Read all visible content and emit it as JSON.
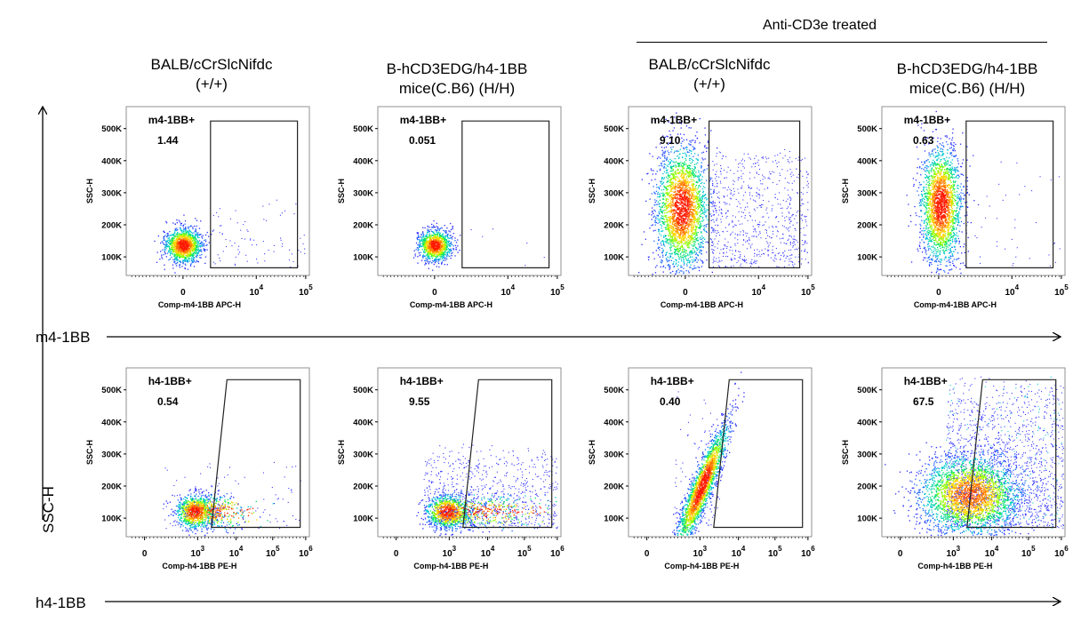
{
  "treatment_label": "Anti-CD3e treated",
  "columns": [
    {
      "title_line1": "BALB/cCrSlcNifdc",
      "title_line2": "(+/+)"
    },
    {
      "title_line1": "B-hCD3EDG/h4-1BB",
      "title_line2": "mice(C.B6) (H/H)"
    },
    {
      "title_line1": "BALB/cCrSlcNifdc",
      "title_line2": "(+/+)"
    },
    {
      "title_line1": "B-hCD3EDG/h4-1BB",
      "title_line2": "mice(C.B6) (H/H)"
    }
  ],
  "outer_axes": {
    "y_label": "SSC-H",
    "row1_x_label": "m4-1BB",
    "row2_x_label": "h4-1BB"
  },
  "colors": {
    "density_low": "#0000ff",
    "density_mid": "#00c8c8",
    "density_mid2": "#ffff00",
    "density_high": "#ff0000",
    "gate": "#000000"
  },
  "chart_data": [
    {
      "type": "scatter",
      "panel": "row1-col1",
      "gate_label": "m4-1BB+",
      "gate_value": "1.44",
      "xlabel": "Comp-m4-1BB APC-H",
      "ylabel": "SSC-H",
      "y_ticks": [
        "500K",
        "400K",
        "300K",
        "200K",
        "100K"
      ],
      "x_ticks": [
        "0",
        "10^4",
        "10^5"
      ],
      "x_scale": "biexponential",
      "ylim": [
        0,
        550000
      ]
    },
    {
      "type": "scatter",
      "panel": "row1-col2",
      "gate_label": "m4-1BB+",
      "gate_value": "0.051",
      "xlabel": "Comp-m4-1BB APC-H",
      "ylabel": "SSC-H",
      "y_ticks": [
        "500K",
        "400K",
        "300K",
        "200K",
        "100K"
      ],
      "x_ticks": [
        "0",
        "10^4",
        "10^5"
      ],
      "x_scale": "biexponential",
      "ylim": [
        0,
        550000
      ]
    },
    {
      "type": "scatter",
      "panel": "row1-col3",
      "gate_label": "m4-1BB+",
      "gate_value": "9.10",
      "xlabel": "Comp-m4-1BB APC-H",
      "ylabel": "SSC-H",
      "y_ticks": [
        "500K",
        "400K",
        "300K",
        "200K",
        "100K"
      ],
      "x_ticks": [
        "0",
        "10^4",
        "10^5"
      ],
      "x_scale": "biexponential",
      "ylim": [
        0,
        550000
      ]
    },
    {
      "type": "scatter",
      "panel": "row1-col4",
      "gate_label": "m4-1BB+",
      "gate_value": "0.63",
      "xlabel": "Comp-m4-1BB APC-H",
      "ylabel": "SSC-H",
      "y_ticks": [
        "500K",
        "400K",
        "300K",
        "200K",
        "100K"
      ],
      "x_ticks": [
        "0",
        "10^4",
        "10^5"
      ],
      "x_scale": "biexponential",
      "ylim": [
        0,
        550000
      ]
    },
    {
      "type": "scatter",
      "panel": "row2-col1",
      "gate_label": "h4-1BB+",
      "gate_value": "0.54",
      "xlabel": "Comp-h4-1BB PE-H",
      "ylabel": "SSC-H",
      "y_ticks": [
        "500K",
        "400K",
        "300K",
        "200K",
        "100K"
      ],
      "x_ticks": [
        "0",
        "10^3",
        "10^4",
        "10^5",
        "10^6"
      ],
      "x_scale": "biexponential",
      "ylim": [
        0,
        550000
      ]
    },
    {
      "type": "scatter",
      "panel": "row2-col2",
      "gate_label": "h4-1BB+",
      "gate_value": "9.55",
      "xlabel": "Comp-h4-1BB PE-H",
      "ylabel": "SSC-H",
      "y_ticks": [
        "500K",
        "400K",
        "300K",
        "200K",
        "100K"
      ],
      "x_ticks": [
        "0",
        "10^3",
        "10^4",
        "10^5",
        "10^6"
      ],
      "x_scale": "biexponential",
      "ylim": [
        0,
        550000
      ]
    },
    {
      "type": "scatter",
      "panel": "row2-col3",
      "gate_label": "h4-1BB+",
      "gate_value": "0.40",
      "xlabel": "Comp-h4-1BB PE-H",
      "ylabel": "SSC-H",
      "y_ticks": [
        "500K",
        "400K",
        "300K",
        "200K",
        "100K"
      ],
      "x_ticks": [
        "0",
        "10^3",
        "10^4",
        "10^5",
        "10^6"
      ],
      "x_scale": "biexponential",
      "ylim": [
        0,
        550000
      ]
    },
    {
      "type": "scatter",
      "panel": "row2-col4",
      "gate_label": "h4-1BB+",
      "gate_value": "67.5",
      "xlabel": "Comp-h4-1BB PE-H",
      "ylabel": "SSC-H",
      "y_ticks": [
        "500K",
        "400K",
        "300K",
        "200K",
        "100K"
      ],
      "x_ticks": [
        "0",
        "10^3",
        "10^4",
        "10^5",
        "10^6"
      ],
      "x_scale": "biexponential",
      "ylim": [
        0,
        550000
      ]
    }
  ]
}
